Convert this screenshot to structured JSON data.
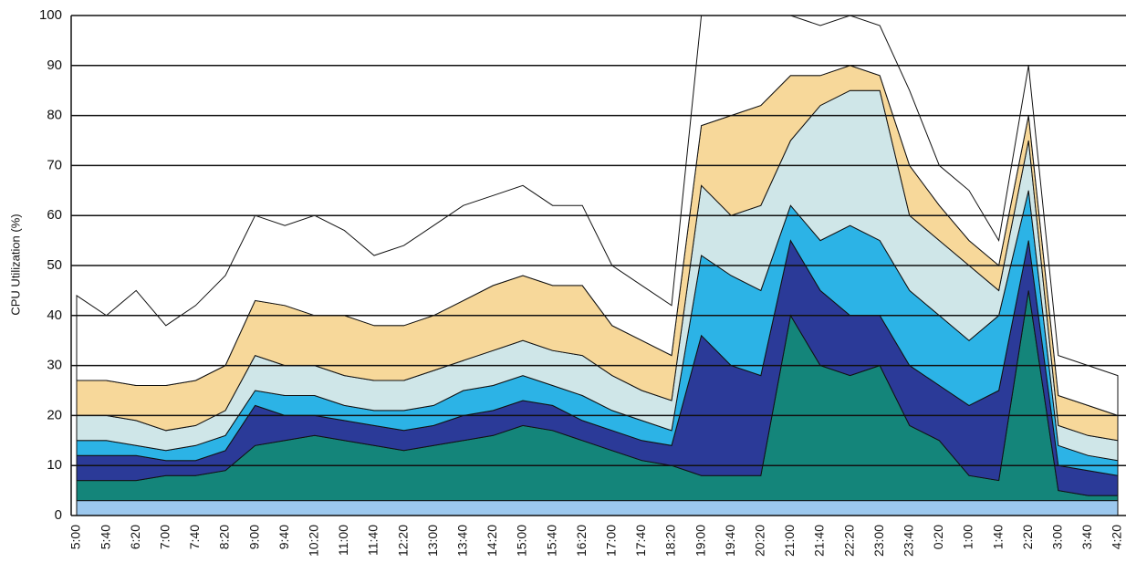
{
  "chart_data": {
    "type": "stacked-area",
    "y_label": "CPU Utilization (%)",
    "categories": [
      "5:00",
      "5:40",
      "6:20",
      "7:00",
      "7:40",
      "8:20",
      "9:00",
      "9:40",
      "10:20",
      "11:00",
      "11:40",
      "12:20",
      "13:00",
      "13:40",
      "14:20",
      "15:00",
      "15:40",
      "16:20",
      "17:00",
      "17:40",
      "18:20",
      "19:00",
      "19:40",
      "20:20",
      "21:00",
      "21:40",
      "22:20",
      "23:00",
      "23:40",
      "0:20",
      "1:00",
      "1:40",
      "2:20",
      "3:00",
      "3:40",
      "4:20"
    ],
    "series": [
      {
        "color": "#9cc8ee",
        "values": [
          3,
          3,
          3,
          3,
          3,
          3,
          3,
          3,
          3,
          3,
          3,
          3,
          3,
          3,
          3,
          3,
          3,
          3,
          3,
          3,
          3,
          3,
          3,
          3,
          3,
          3,
          3,
          3,
          3,
          3,
          3,
          3,
          3,
          3,
          3,
          3
        ]
      },
      {
        "color": "#14857a",
        "values": [
          4,
          4,
          4,
          5,
          5,
          6,
          11,
          12,
          13,
          12,
          11,
          10,
          11,
          12,
          13,
          15,
          14,
          12,
          10,
          8,
          7,
          5,
          5,
          5,
          37,
          27,
          25,
          27,
          15,
          12,
          5,
          4,
          42,
          2,
          1,
          1
        ]
      },
      {
        "color": "#2b3a98",
        "values": [
          5,
          5,
          5,
          3,
          3,
          4,
          8,
          5,
          4,
          4,
          4,
          4,
          4,
          5,
          5,
          5,
          5,
          4,
          4,
          4,
          4,
          28,
          22,
          20,
          15,
          15,
          12,
          10,
          12,
          11,
          14,
          18,
          10,
          5,
          5,
          4
        ]
      },
      {
        "color": "#2cb3e6",
        "values": [
          3,
          3,
          2,
          2,
          3,
          3,
          3,
          4,
          4,
          3,
          3,
          4,
          4,
          5,
          5,
          5,
          4,
          5,
          4,
          4,
          3,
          16,
          18,
          17,
          7,
          10,
          18,
          15,
          15,
          14,
          13,
          15,
          10,
          4,
          3,
          3
        ]
      },
      {
        "color": "#cfe6e8",
        "values": [
          5,
          5,
          5,
          4,
          4,
          5,
          7,
          6,
          6,
          6,
          6,
          6,
          7,
          6,
          7,
          7,
          7,
          8,
          7,
          6,
          6,
          14,
          12,
          17,
          13,
          27,
          27,
          30,
          15,
          15,
          15,
          5,
          10,
          4,
          4,
          4
        ]
      },
      {
        "color": "#f7d89a",
        "values": [
          7,
          7,
          7,
          9,
          9,
          9,
          11,
          12,
          10,
          12,
          11,
          11,
          11,
          12,
          13,
          13,
          13,
          14,
          10,
          10,
          9,
          12,
          20,
          20,
          13,
          6,
          5,
          3,
          10,
          7,
          5,
          5,
          5,
          6,
          6,
          5
        ]
      },
      {
        "color": "#ffffff",
        "values": [
          17,
          13,
          19,
          12,
          15,
          18,
          17,
          16,
          20,
          17,
          14,
          16,
          18,
          19,
          18,
          18,
          16,
          16,
          12,
          11,
          10,
          22,
          20,
          18,
          12,
          10,
          10,
          10,
          15,
          8,
          10,
          5,
          10,
          8,
          8,
          8
        ]
      }
    ],
    "ylim": [
      0,
      100
    ],
    "yticks": [
      0,
      10,
      20,
      30,
      40,
      50,
      60,
      70,
      80,
      90,
      100
    ],
    "grid": true
  }
}
